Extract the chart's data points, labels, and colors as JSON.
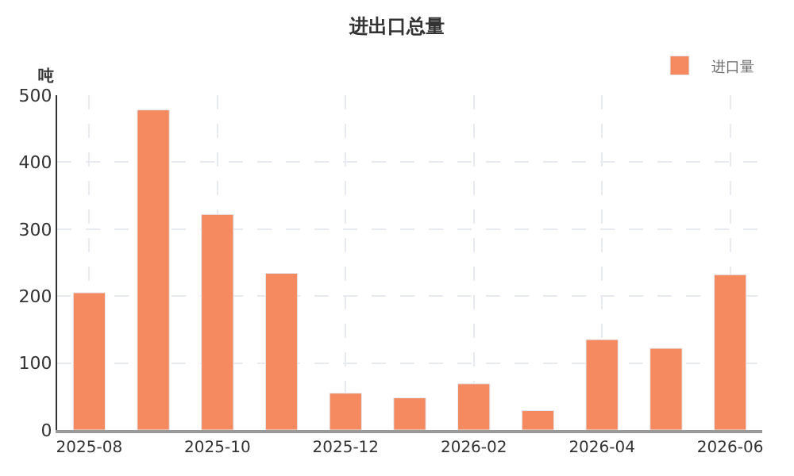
{
  "chart_data": {
    "type": "bar",
    "title": "进出口总量",
    "ylabel": "吨",
    "categories": [
      "2025-08",
      null,
      "2025-10",
      null,
      "2025-12",
      null,
      "2026-02",
      null,
      "2026-04",
      null,
      "2026-06"
    ],
    "series": [
      {
        "name": "进口量",
        "color": "#f5895f",
        "values": [
          205,
          478,
          322,
          234,
          55,
          48,
          69,
          29,
          135,
          122,
          232
        ]
      }
    ],
    "ylim": [
      0,
      500
    ],
    "yticks": [
      0,
      100,
      200,
      300,
      400,
      500
    ],
    "grid": true,
    "legend": "top right"
  }
}
